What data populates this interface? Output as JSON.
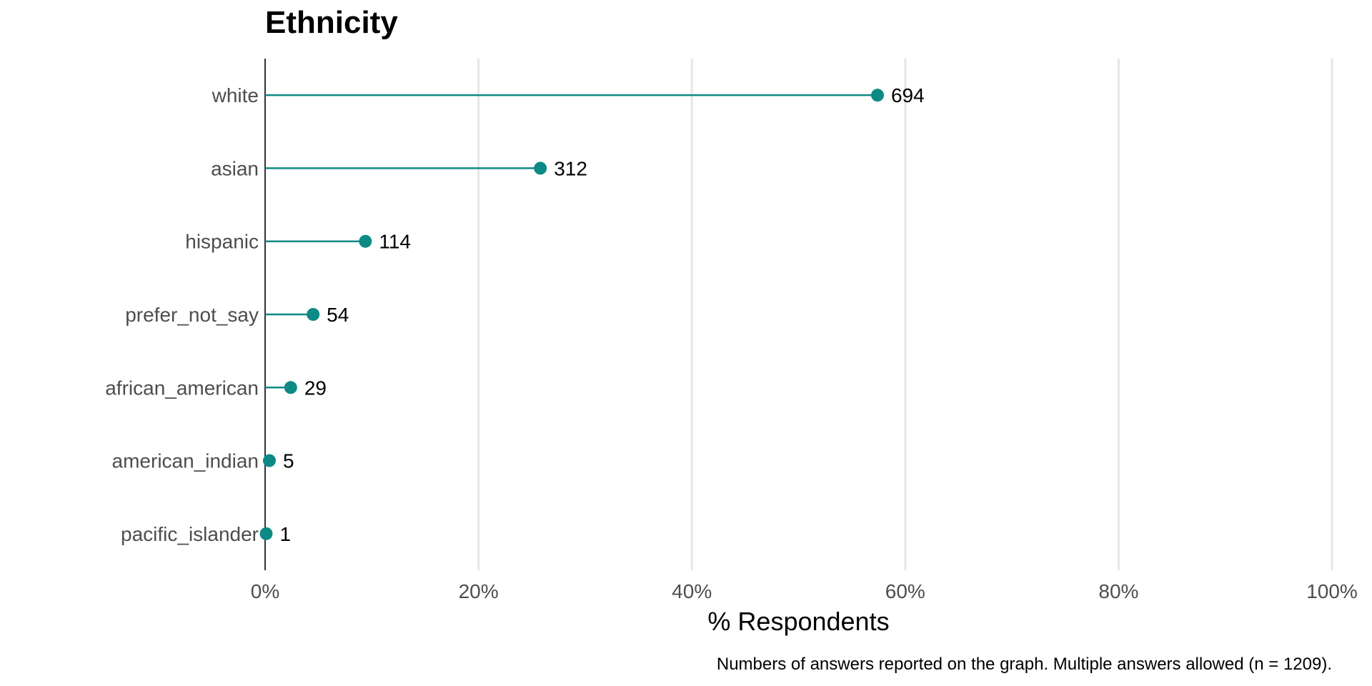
{
  "chart_data": {
    "type": "lollipop",
    "title": "Ethnicity",
    "xlabel": "% Respondents",
    "ylabel": "",
    "caption": "Numbers of answers reported on the graph. Multiple answers allowed  (n = 1209).",
    "xlim": [
      0,
      100
    ],
    "x_ticks": [
      "0%",
      "20%",
      "40%",
      "60%",
      "80%",
      "100%"
    ],
    "x_tick_values": [
      0,
      20,
      40,
      60,
      80,
      100
    ],
    "grid": "vertical major",
    "categories": [
      "white",
      "asian",
      "hispanic",
      "prefer_not_say",
      "african_american",
      "american_indian",
      "pacific_islander"
    ],
    "counts": [
      694,
      312,
      114,
      54,
      29,
      5,
      1
    ],
    "values_percent": [
      57.4,
      25.8,
      9.4,
      4.5,
      2.4,
      0.4,
      0.1
    ],
    "n": 1209,
    "colors": {
      "marker": "#0d8a85",
      "axis": "#333333",
      "grid": "#e6e6e6"
    }
  }
}
